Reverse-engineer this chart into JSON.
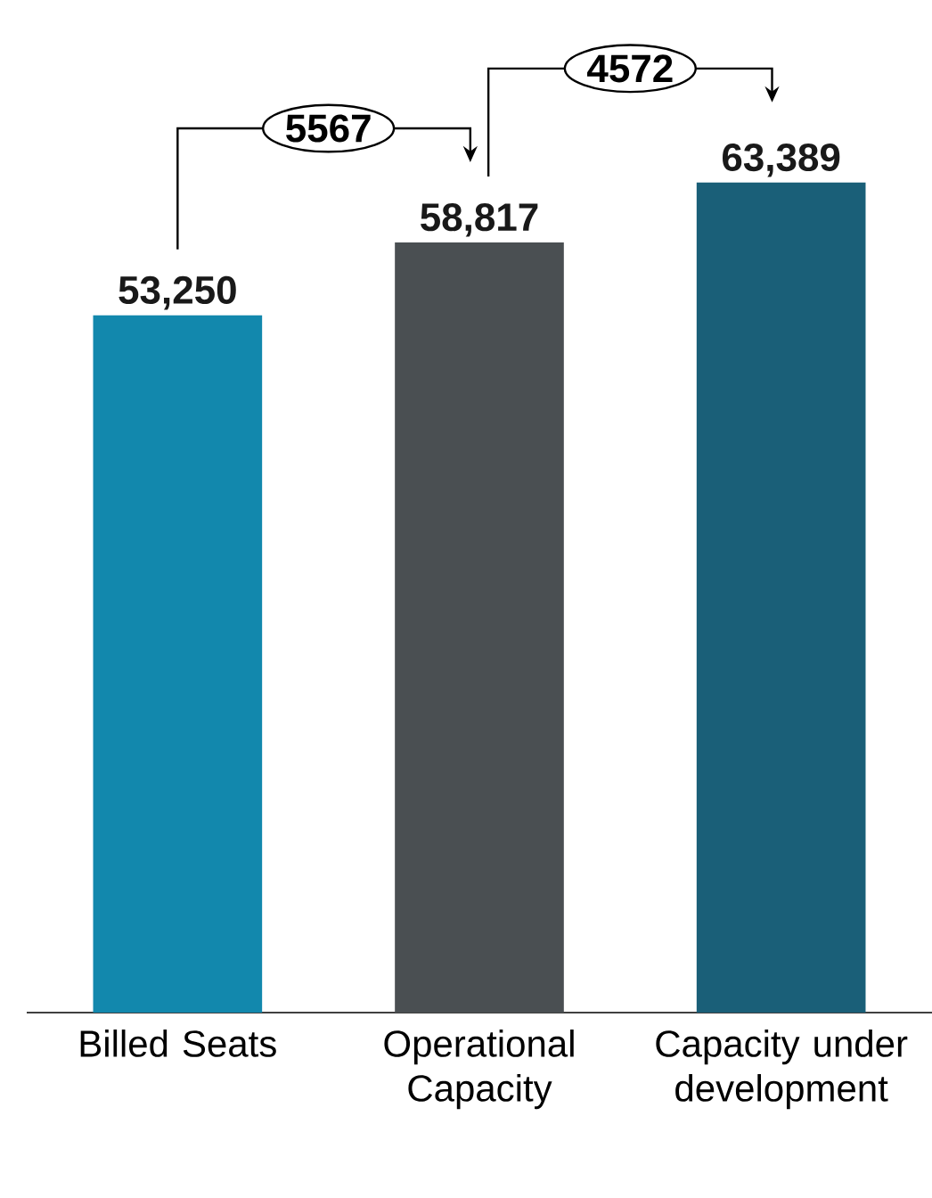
{
  "chart_data": {
    "type": "bar",
    "categories": [
      "Billed Seats",
      "Operational Capacity",
      "Capacity under development"
    ],
    "values": [
      53250,
      58817,
      63389
    ],
    "colors": [
      "#1288ad",
      "#4a4f52",
      "#1a5f78"
    ],
    "value_labels": [
      "53,250",
      "58,817",
      "63,389"
    ],
    "annotations": [
      "5567",
      "4572"
    ]
  }
}
